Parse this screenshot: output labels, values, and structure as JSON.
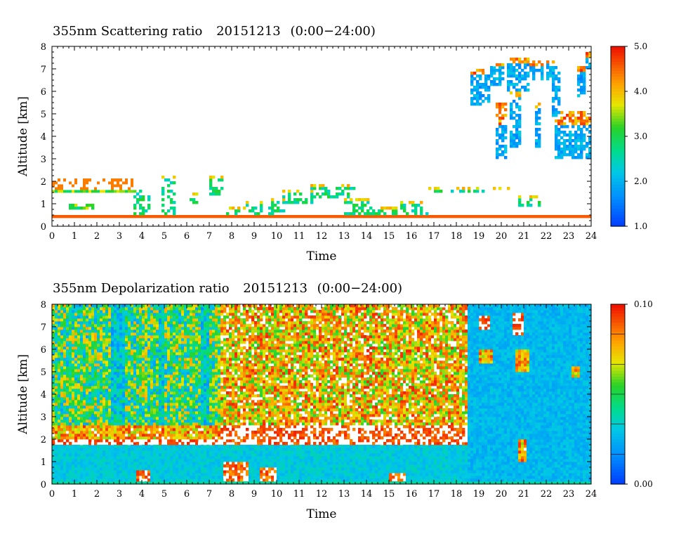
{
  "chart_data": [
    {
      "type": "heatmap",
      "title": "355nm Scattering ratio",
      "date": "20151213",
      "time_range": "(0:00−24:00)",
      "xlabel": "Time",
      "ylabel": "Altitude [km]",
      "xlim": [
        0,
        24
      ],
      "ylim": [
        0,
        8
      ],
      "xticks": [
        0,
        1,
        2,
        3,
        4,
        5,
        6,
        7,
        8,
        9,
        10,
        11,
        12,
        13,
        14,
        15,
        16,
        17,
        18,
        19,
        20,
        21,
        22,
        23,
        24
      ],
      "yticks": [
        0,
        1,
        2,
        3,
        4,
        5,
        6,
        7,
        8
      ],
      "colorbar": {
        "min": 1.0,
        "max": 5.0,
        "labels": [
          "1.0",
          "2.0",
          "3.0",
          "4.0",
          "5.0"
        ],
        "colormap": "blue-cyan-green-yellow-orange-red"
      },
      "features": [
        {
          "kind": "cloud-band",
          "t_start": 0,
          "t_end": 3.8,
          "alt_bottom": 1.6,
          "alt_top": 2.1,
          "level": "high"
        },
        {
          "kind": "cloud-patches",
          "t_start": 3.5,
          "t_end": 16.5,
          "alt_bottom": 0.3,
          "alt_top": 1.7,
          "level": "mixed"
        },
        {
          "kind": "cloud-band",
          "t_start": 10.2,
          "t_end": 13.5,
          "alt_bottom": 1.2,
          "alt_top": 1.9,
          "level": "high"
        },
        {
          "kind": "cloud-band",
          "t_start": 16.8,
          "t_end": 19.2,
          "alt_bottom": 1.5,
          "alt_top": 1.8,
          "level": "high"
        },
        {
          "kind": "high-cloud",
          "t_start": 18.5,
          "t_end": 24,
          "alt_bottom": 3.0,
          "alt_top": 7.6,
          "level": "high"
        },
        {
          "kind": "surface-line",
          "t_start": 0,
          "t_end": 24,
          "alt": 0.4
        }
      ]
    },
    {
      "type": "heatmap",
      "title": "355nm Depolarization ratio",
      "date": "20151213",
      "time_range": "(0:00−24:00)",
      "xlabel": "Time",
      "ylabel": "Altitude [km]",
      "xlim": [
        0,
        24
      ],
      "ylim": [
        0,
        8
      ],
      "xticks": [
        0,
        1,
        2,
        3,
        4,
        5,
        6,
        7,
        8,
        9,
        10,
        11,
        12,
        13,
        14,
        15,
        16,
        17,
        18,
        19,
        20,
        21,
        22,
        23,
        24
      ],
      "yticks": [
        0,
        1,
        2,
        3,
        4,
        5,
        6,
        7,
        8
      ],
      "colorbar": {
        "min": 0.0,
        "max": 0.1,
        "labels": [
          "0.00",
          "0.10"
        ],
        "colormap": "blue-cyan-green-yellow-orange-red"
      },
      "features": [
        {
          "kind": "noisy-region",
          "t_start": 0,
          "t_end": 7.5,
          "alt_bottom": 2.5,
          "alt_top": 8,
          "level": "medium"
        },
        {
          "kind": "noisy-region",
          "t_start": 7.5,
          "t_end": 18.5,
          "alt_bottom": 2,
          "alt_top": 8,
          "level": "high"
        },
        {
          "kind": "band",
          "t_start": 0,
          "t_end": 18.5,
          "alt_bottom": 1.8,
          "alt_top": 2.6,
          "level": "very-high"
        },
        {
          "kind": "low-background",
          "t_start": 0,
          "t_end": 24,
          "alt_bottom": 0,
          "alt_top": 1.8,
          "level": "low"
        },
        {
          "kind": "low-background",
          "t_start": 18.5,
          "t_end": 24,
          "alt_bottom": 0,
          "alt_top": 8,
          "level": "low"
        },
        {
          "kind": "high-cloud",
          "t_start": 19,
          "t_end": 24,
          "alt_bottom": 4.8,
          "alt_top": 7.6,
          "level": "high"
        }
      ]
    }
  ]
}
